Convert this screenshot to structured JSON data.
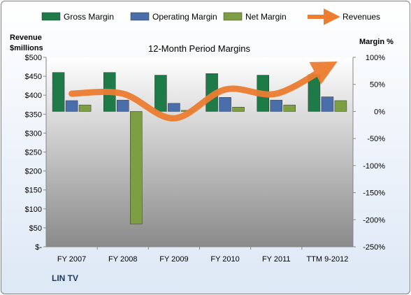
{
  "chart_data": {
    "type": "bar",
    "title": "12-Month Period Margins",
    "company": "LIN TV",
    "y_left_label": [
      "Revenue",
      "$millions"
    ],
    "y_right_label": "Margin %",
    "categories": [
      "FY 2007",
      "FY 2008",
      "FY 2009",
      "FY 2010",
      "FY 2011",
      "TTM 9-2012"
    ],
    "y_left_ticks": [
      "$-",
      "$50",
      "$100",
      "$150",
      "$200",
      "$250",
      "$300",
      "$350",
      "$400",
      "$450",
      "$500"
    ],
    "y_right_ticks": [
      "-250%",
      "-200%",
      "-150%",
      "-100%",
      "-50%",
      "0%",
      "50%",
      "100%"
    ],
    "ylim_left": [
      0,
      500
    ],
    "ylim_right": [
      -250,
      100
    ],
    "series": [
      {
        "name": "Gross Margin",
        "axis": "right",
        "kind": "bar",
        "color": "#1e7b47",
        "values": [
          72,
          72,
          67,
          70,
          67,
          68
        ]
      },
      {
        "name": "Operating Margin",
        "axis": "right",
        "kind": "bar",
        "color": "#4a6ea9",
        "values": [
          20,
          21,
          15,
          26,
          21,
          27
        ]
      },
      {
        "name": "Net Margin",
        "axis": "right",
        "kind": "bar",
        "color": "#7d9e43",
        "values": [
          12,
          -208,
          2,
          8,
          12,
          20
        ]
      },
      {
        "name": "Revenues",
        "axis": "left",
        "kind": "line",
        "color": "#ed7d31",
        "values": [
          404,
          404,
          339,
          415,
          404,
          475
        ]
      }
    ],
    "legend_position": "top",
    "grid": false
  }
}
